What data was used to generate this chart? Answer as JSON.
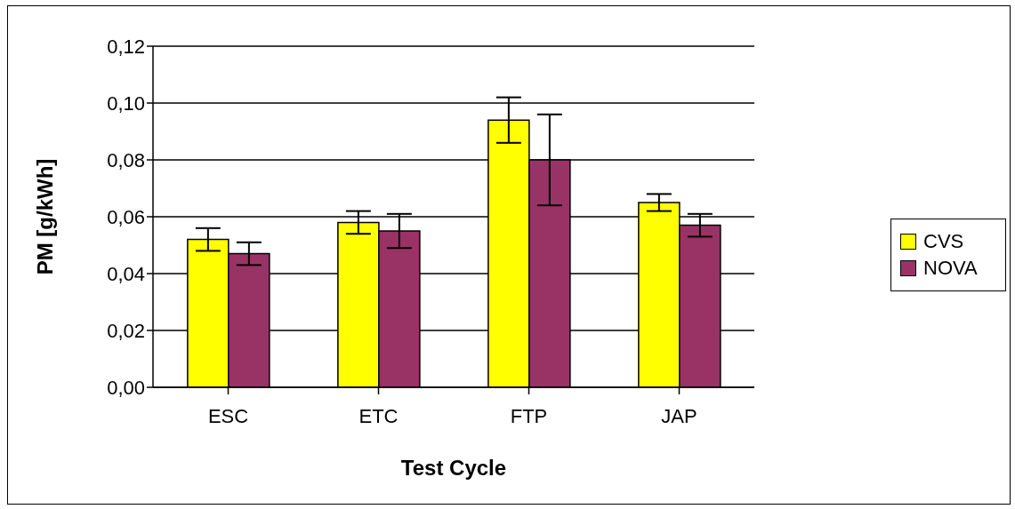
{
  "chart_data": {
    "type": "bar",
    "xlabel": "Test Cycle",
    "ylabel": "PM [g/kWh]",
    "categories": [
      "ESC",
      "ETC",
      "FTP",
      "JAP"
    ],
    "series": [
      {
        "name": "CVS",
        "color": "#ffff00",
        "values": [
          0.052,
          0.058,
          0.094,
          0.065
        ],
        "errors": [
          0.004,
          0.004,
          0.008,
          0.003
        ]
      },
      {
        "name": "NOVA",
        "color": "#993366",
        "values": [
          0.047,
          0.055,
          0.08,
          0.057
        ],
        "errors": [
          0.004,
          0.006,
          0.016,
          0.004
        ]
      }
    ],
    "ylim": [
      0,
      0.12
    ],
    "yticks": [
      {
        "value": 0,
        "label": "0,00"
      },
      {
        "value": 0.02,
        "label": "0,02"
      },
      {
        "value": 0.04,
        "label": "0,04"
      },
      {
        "value": 0.06,
        "label": "0,06"
      },
      {
        "value": 0.08,
        "label": "0,08"
      },
      {
        "value": 0.1,
        "label": "0,10"
      },
      {
        "value": 0.12,
        "label": "0,12"
      }
    ],
    "grid": "y",
    "legend": "right"
  }
}
